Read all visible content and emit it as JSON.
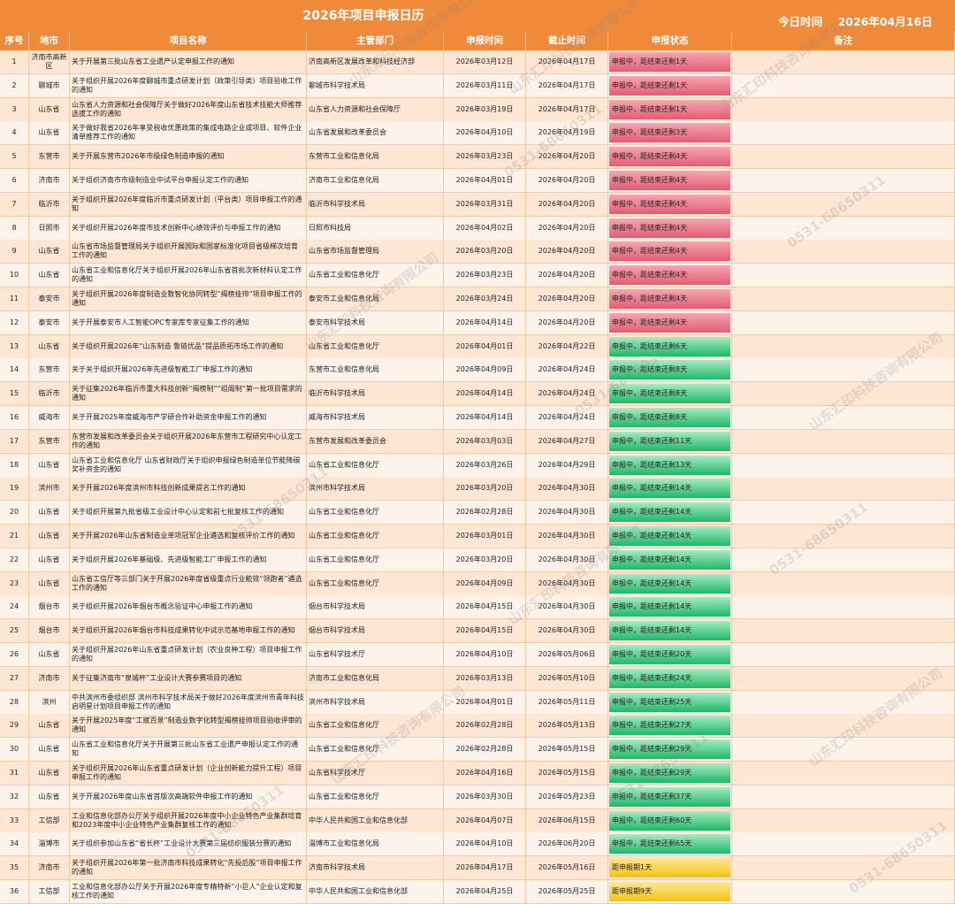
{
  "header": {
    "title": "2026年项目申报日历",
    "today_label": "今日时间",
    "today_value": "2026年04月16日"
  },
  "columns": [
    "序号",
    "地市",
    "项目名称",
    "主管部门",
    "申报时间",
    "截止时间",
    "申报状态",
    "备注"
  ],
  "status_colors": {
    "red": "#e45c72",
    "green": "#1fb868",
    "yellow": "#f3c314"
  },
  "rows": [
    {
      "no": "1",
      "city": "济南市高新区",
      "name": "关于开展第三批山东省工业遗产认定申报工作的通知",
      "dept": "济南高新区发展改革和科技经济部",
      "start": "2026年03月12日",
      "end": "2026年04月17日",
      "status": "申报中，距结束还剩1天",
      "color": "red",
      "note": ""
    },
    {
      "no": "2",
      "city": "聊城市",
      "name": "关于组织开展2026年度聊城市重点研发计划（政策引导类）项目验收工作的通知",
      "dept": "聊城市科学技术局",
      "start": "2026年03月11日",
      "end": "2026年04月17日",
      "status": "申报中，距结束还剩1天",
      "color": "red",
      "note": ""
    },
    {
      "no": "3",
      "city": "山东省",
      "name": "山东省人力资源和社会保障厅关于做好2026年度山东省技术技能大师推荐选拔工作的通知",
      "dept": "山东省人力资源和社会保障厅",
      "start": "2026年03月19日",
      "end": "2026年04月17日",
      "status": "申报中，距结束还剩1天",
      "color": "red",
      "note": ""
    },
    {
      "no": "4",
      "city": "山东省",
      "name": "关于做好我省2026年享受税收优惠政策的集成电路企业或项目、软件企业清单推荐工作的通知",
      "dept": "山东省发展和改革委员会",
      "start": "2026年04月10日",
      "end": "2026年04月19日",
      "status": "申报中，距结束还剩3天",
      "color": "red",
      "note": ""
    },
    {
      "no": "5",
      "city": "东营市",
      "name": "关于开展东营市2026年市级绿色制造申报的通知",
      "dept": "东营市工业和信息化局",
      "start": "2026年03月23日",
      "end": "2026年04月20日",
      "status": "申报中，距结束还剩4天",
      "color": "red",
      "note": ""
    },
    {
      "no": "6",
      "city": "济南市",
      "name": "关于组织济南市市级制造业中试平台申报认定工作的通知",
      "dept": "济南市工业和信息化局",
      "start": "2026年04月01日",
      "end": "2026年04月20日",
      "status": "申报中，距结束还剩4天",
      "color": "red",
      "note": ""
    },
    {
      "no": "7",
      "city": "临沂市",
      "name": "关于组织开展2026年度临沂市重点研发计划（平台类）项目申报工作的通知",
      "dept": "临沂市科学技术局",
      "start": "2026年03月31日",
      "end": "2026年04月20日",
      "status": "申报中，距结束还剩4天",
      "color": "red",
      "note": ""
    },
    {
      "no": "8",
      "city": "日照市",
      "name": "关于组织开展2026年度市技术创新中心绩效评价与申报工作的通知",
      "dept": "日照市科技局",
      "start": "2026年04月02日",
      "end": "2026年04月20日",
      "status": "申报中，距结束还剩4天",
      "color": "red",
      "note": ""
    },
    {
      "no": "9",
      "city": "山东省",
      "name": "山东省市场监督管理局关于组织开展国际和国家标准化项目省级梯次培育工作的通知",
      "dept": "山东省市场监督管理局",
      "start": "2026年03月20日",
      "end": "2026年04月20日",
      "status": "申报中，距结束还剩4天",
      "color": "red",
      "note": ""
    },
    {
      "no": "10",
      "city": "山东省",
      "name": "山东省工业和信息化厅关于组织开展2026年山东省首批次新材料认定工作的通知",
      "dept": "山东省工业和信息化厅",
      "start": "2026年03月23日",
      "end": "2026年04月20日",
      "status": "申报中，距结束还剩4天",
      "color": "red",
      "note": ""
    },
    {
      "no": "11",
      "city": "泰安市",
      "name": "关于组织开展2026年度制造业数智化协同转型“揭榜挂帅”项目申报工作的通知",
      "dept": "泰安市工业和信息化局",
      "start": "2026年03月24日",
      "end": "2026年04月20日",
      "status": "申报中，距结束还剩4天",
      "color": "red",
      "note": ""
    },
    {
      "no": "12",
      "city": "泰安市",
      "name": "关于开展泰安市人工智能OPC专家库专家征集工作的通知",
      "dept": "泰安市科学技术局",
      "start": "2026年04月14日",
      "end": "2026年04月20日",
      "status": "申报中，距结束还剩4天",
      "color": "red",
      "note": ""
    },
    {
      "no": "13",
      "city": "山东省",
      "name": "关于组织开展2026年“山东制造 鲁链优品”提品质拓市场工作的通知",
      "dept": "山东省工业和信息化厅",
      "start": "2026年04月01日",
      "end": "2026年04月22日",
      "status": "申报中，距结束还剩6天",
      "color": "green",
      "note": ""
    },
    {
      "no": "14",
      "city": "东营市",
      "name": "关于关于组织开展2026年先进级智能工厂申报工作的通知",
      "dept": "东营市工业和信息化局",
      "start": "2026年04月09日",
      "end": "2026年04月24日",
      "status": "申报中，距结束还剩8天",
      "color": "green",
      "note": ""
    },
    {
      "no": "15",
      "city": "临沂市",
      "name": "关于征集2026年临沂市重大科技创新“揭榜制”“组阁制”第一批项目需求的通知",
      "dept": "临沂市科学技术局",
      "start": "2026年04月14日",
      "end": "2026年04月24日",
      "status": "申报中，距结束还剩8天",
      "color": "green",
      "note": ""
    },
    {
      "no": "16",
      "city": "威海市",
      "name": "关于开展2025年度威海市产学研合作补助资金申报工作的通知",
      "dept": "威海市科学技术局",
      "start": "2026年04月14日",
      "end": "2026年04月24日",
      "status": "申报中，距结束还剩8天",
      "color": "green",
      "note": ""
    },
    {
      "no": "17",
      "city": "东营市",
      "name": "东营市发展和改革委员会关于组织开展2026年东营市工程研究中心认定工作的通知",
      "dept": "东营市发展和改革委员会",
      "start": "2026年03月03日",
      "end": "2026年04月27日",
      "status": "申报中，距结束还剩11天",
      "color": "green",
      "note": ""
    },
    {
      "no": "18",
      "city": "山东省",
      "name": "山东省工业和信息化厅 山东省财政厅关于组织申报绿色制造单位节能降碳奖补资金的通知",
      "dept": "山东省工业和信息化厅",
      "start": "2026年03月26日",
      "end": "2026年04月29日",
      "status": "申报中，距结束还剩13天",
      "color": "green",
      "note": ""
    },
    {
      "no": "19",
      "city": "滨州市",
      "name": "关于开展2026年度滨州市科技创新成果提名工作的通知",
      "dept": "滨州市科学技术局",
      "start": "2026年03月20日",
      "end": "2026年04月30日",
      "status": "申报中，距结束还剩14天",
      "color": "green",
      "note": ""
    },
    {
      "no": "20",
      "city": "山东省",
      "name": "关于组织开展第九批省级工业设计中心认定和前七批复核工作的通知",
      "dept": "山东省工业和信息化厅",
      "start": "2026年02月28日",
      "end": "2026年04月30日",
      "status": "申报中，距结束还剩14天",
      "color": "green",
      "note": ""
    },
    {
      "no": "21",
      "city": "山东省",
      "name": "关于开展2026年山东省制造业单项冠军企业遴选和复核评价工作的通知",
      "dept": "山东省工业和信息化厅",
      "start": "2026年03月01日",
      "end": "2026年04月30日",
      "status": "申报中，距结束还剩14天",
      "color": "green",
      "note": ""
    },
    {
      "no": "22",
      "city": "山东省",
      "name": "关于组织开展2026年基础级、先进级智能工厂申报工作的通知",
      "dept": "山东省工业和信息化厅",
      "start": "2026年03月20日",
      "end": "2026年04月30日",
      "status": "申报中，距结束还剩14天",
      "color": "green",
      "note": ""
    },
    {
      "no": "23",
      "city": "山东省",
      "name": "山东省工信厅等三部门关于开展2026年度省级重点行业能效“领跑者”遴选工作的通知",
      "dept": "山东省工业和信息化厅",
      "start": "2026年04月09日",
      "end": "2026年04月30日",
      "status": "申报中，距结束还剩14天",
      "color": "green",
      "note": ""
    },
    {
      "no": "24",
      "city": "烟台市",
      "name": "关于组织开展2026年烟台市概念验证中心申报工作的通知",
      "dept": "烟台市科学技术局",
      "start": "2026年04月15日",
      "end": "2026年04月30日",
      "status": "申报中，距结束还剩14天",
      "color": "green",
      "note": ""
    },
    {
      "no": "25",
      "city": "烟台市",
      "name": "关于组织开展2026年烟台市科技成果转化中试示范基地申报工作的通知",
      "dept": "烟台市科学技术局",
      "start": "2026年04月15日",
      "end": "2026年04月30日",
      "status": "申报中，距结束还剩14天",
      "color": "green",
      "note": ""
    },
    {
      "no": "26",
      "city": "山东省",
      "name": "关于组织开展2026年山东省重点研发计划（农业良种工程）项目申报工作的通知",
      "dept": "山东省科学技术厅",
      "start": "2026年04月10日",
      "end": "2026年05月06日",
      "status": "申报中，距结束还剩20天",
      "color": "green",
      "note": ""
    },
    {
      "no": "27",
      "city": "济南市",
      "name": "关于征集济南市“泉城杯”工业设计大赛参赛项目的通知",
      "dept": "济南市工业和信息化局",
      "start": "2026年03月13日",
      "end": "2026年05月10日",
      "status": "申报中，距结束还剩24天",
      "color": "green",
      "note": ""
    },
    {
      "no": "28",
      "city": "滨州",
      "name": "中共滨州市委组织部 滨州市科学技术局关于做好2026年度滨州市青年科技启明星计划项目申报工作的通知",
      "dept": "滨州市科学技术局",
      "start": "2026年04月01日",
      "end": "2026年05月11日",
      "status": "申报中，距结束还剩25天",
      "color": "green",
      "note": ""
    },
    {
      "no": "29",
      "city": "山东省",
      "name": "关于开展2025年度“工赋百景”制造业数字化转型揭榜挂帅项目验收评审的通知",
      "dept": "山东省工业和信息化厅",
      "start": "2026年02月28日",
      "end": "2026年05月13日",
      "status": "申报中，距结束还剩27天",
      "color": "green",
      "note": ""
    },
    {
      "no": "30",
      "city": "山东省",
      "name": "山东省工业和信息化厅关于开展第三批山东省工业遗产申报认定工作的通知",
      "dept": "山东省工业和信息化厅",
      "start": "2026年02月28日",
      "end": "2026年05月15日",
      "status": "申报中，距结束还剩29天",
      "color": "green",
      "note": ""
    },
    {
      "no": "31",
      "city": "山东省",
      "name": "关于组织开展2026年山东省重点研发计划（企业创新能力提升工程）项目申报工作的通知",
      "dept": "山东省科学技术厅",
      "start": "2026年04月16日",
      "end": "2026年05月15日",
      "status": "申报中，距结束还剩29天",
      "color": "green",
      "note": ""
    },
    {
      "no": "32",
      "city": "山东省",
      "name": "关于开展2026年度山东省首版次高端软件申报工作的通知",
      "dept": "山东省工业和信息化厅",
      "start": "2026年03月30日",
      "end": "2026年05月23日",
      "status": "申报中，距结束还剩37天",
      "color": "green",
      "note": ""
    },
    {
      "no": "33",
      "city": "工信部",
      "name": "工业和信息化部办公厅关于组织开展2026年度中小企业特色产业集群培育和2023年度中小企业特色产业集群复核工作的通知",
      "dept": "中华人民共和国工业和信息化部",
      "start": "2026年04月07日",
      "end": "2026年06月15日",
      "status": "申报中，距结束还剩60天",
      "color": "green",
      "note": ""
    },
    {
      "no": "34",
      "city": "淄博市",
      "name": "关于组织参加山东省“省长杯”工业设计大赛第三届纺织服装分赛的通知",
      "dept": "淄博市工业和信息化局",
      "start": "2026年04月10日",
      "end": "2026年06月20日",
      "status": "申报中，距结束还剩65天",
      "color": "green",
      "note": ""
    },
    {
      "no": "35",
      "city": "济南市",
      "name": "关于组织开展2026年第一批济南市科技成果转化“先投后股”项目申报工作的通知",
      "dept": "济南市科学技术局",
      "start": "2026年04月17日",
      "end": "2026年05月16日",
      "status": "距申报期1天",
      "color": "yellow",
      "note": ""
    },
    {
      "no": "36",
      "city": "工信部",
      "name": "工业和信息化部办公厅关于开展2026年度专精特新“小巨人”企业认定和复核工作的通知",
      "dept": "中华人民共和国工业和信息化部",
      "start": "2026年04月25日",
      "end": "2026年05月25日",
      "status": "距申报期9天",
      "color": "yellow",
      "note": ""
    }
  ],
  "watermark": {
    "company": "山东汇印科技咨询有限公司",
    "phone": "0531-68650311"
  }
}
